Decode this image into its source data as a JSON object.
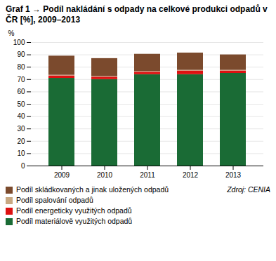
{
  "chart_data": {
    "type": "bar",
    "stacked": true,
    "title": "Graf 1 → Podíl nakládání s odpady na celkové produkci odpadů v ČR [%], 2009–2013",
    "ylabel": "%",
    "categories": [
      "2009",
      "2010",
      "2011",
      "2012",
      "2013"
    ],
    "series": [
      {
        "name": "Podíl materiálově využitých odpadů",
        "color": "#1a6b35",
        "values": [
          71,
          70,
          74,
          74,
          75
        ]
      },
      {
        "name": "Podíl energeticky využitých odpadů",
        "color": "#dd1111",
        "values": [
          2,
          2,
          2,
          3,
          2
        ]
      },
      {
        "name": "Podíl spalování odpadů",
        "color": "#c8a882",
        "values": [
          0.5,
          0.5,
          0.5,
          0.5,
          0.5
        ]
      },
      {
        "name": "Podíl skládkovaných a jinak uložených odpadů",
        "color": "#7b4a2d",
        "values": [
          15.5,
          14.5,
          14,
          14,
          12.5
        ]
      }
    ],
    "ylim": [
      0,
      100
    ],
    "yticks": [
      0,
      10,
      20,
      30,
      40,
      50,
      60,
      70,
      80,
      90,
      100
    ],
    "grid": true,
    "legend": "bottom",
    "annotations": [
      "Zdroj: CENIA"
    ]
  }
}
